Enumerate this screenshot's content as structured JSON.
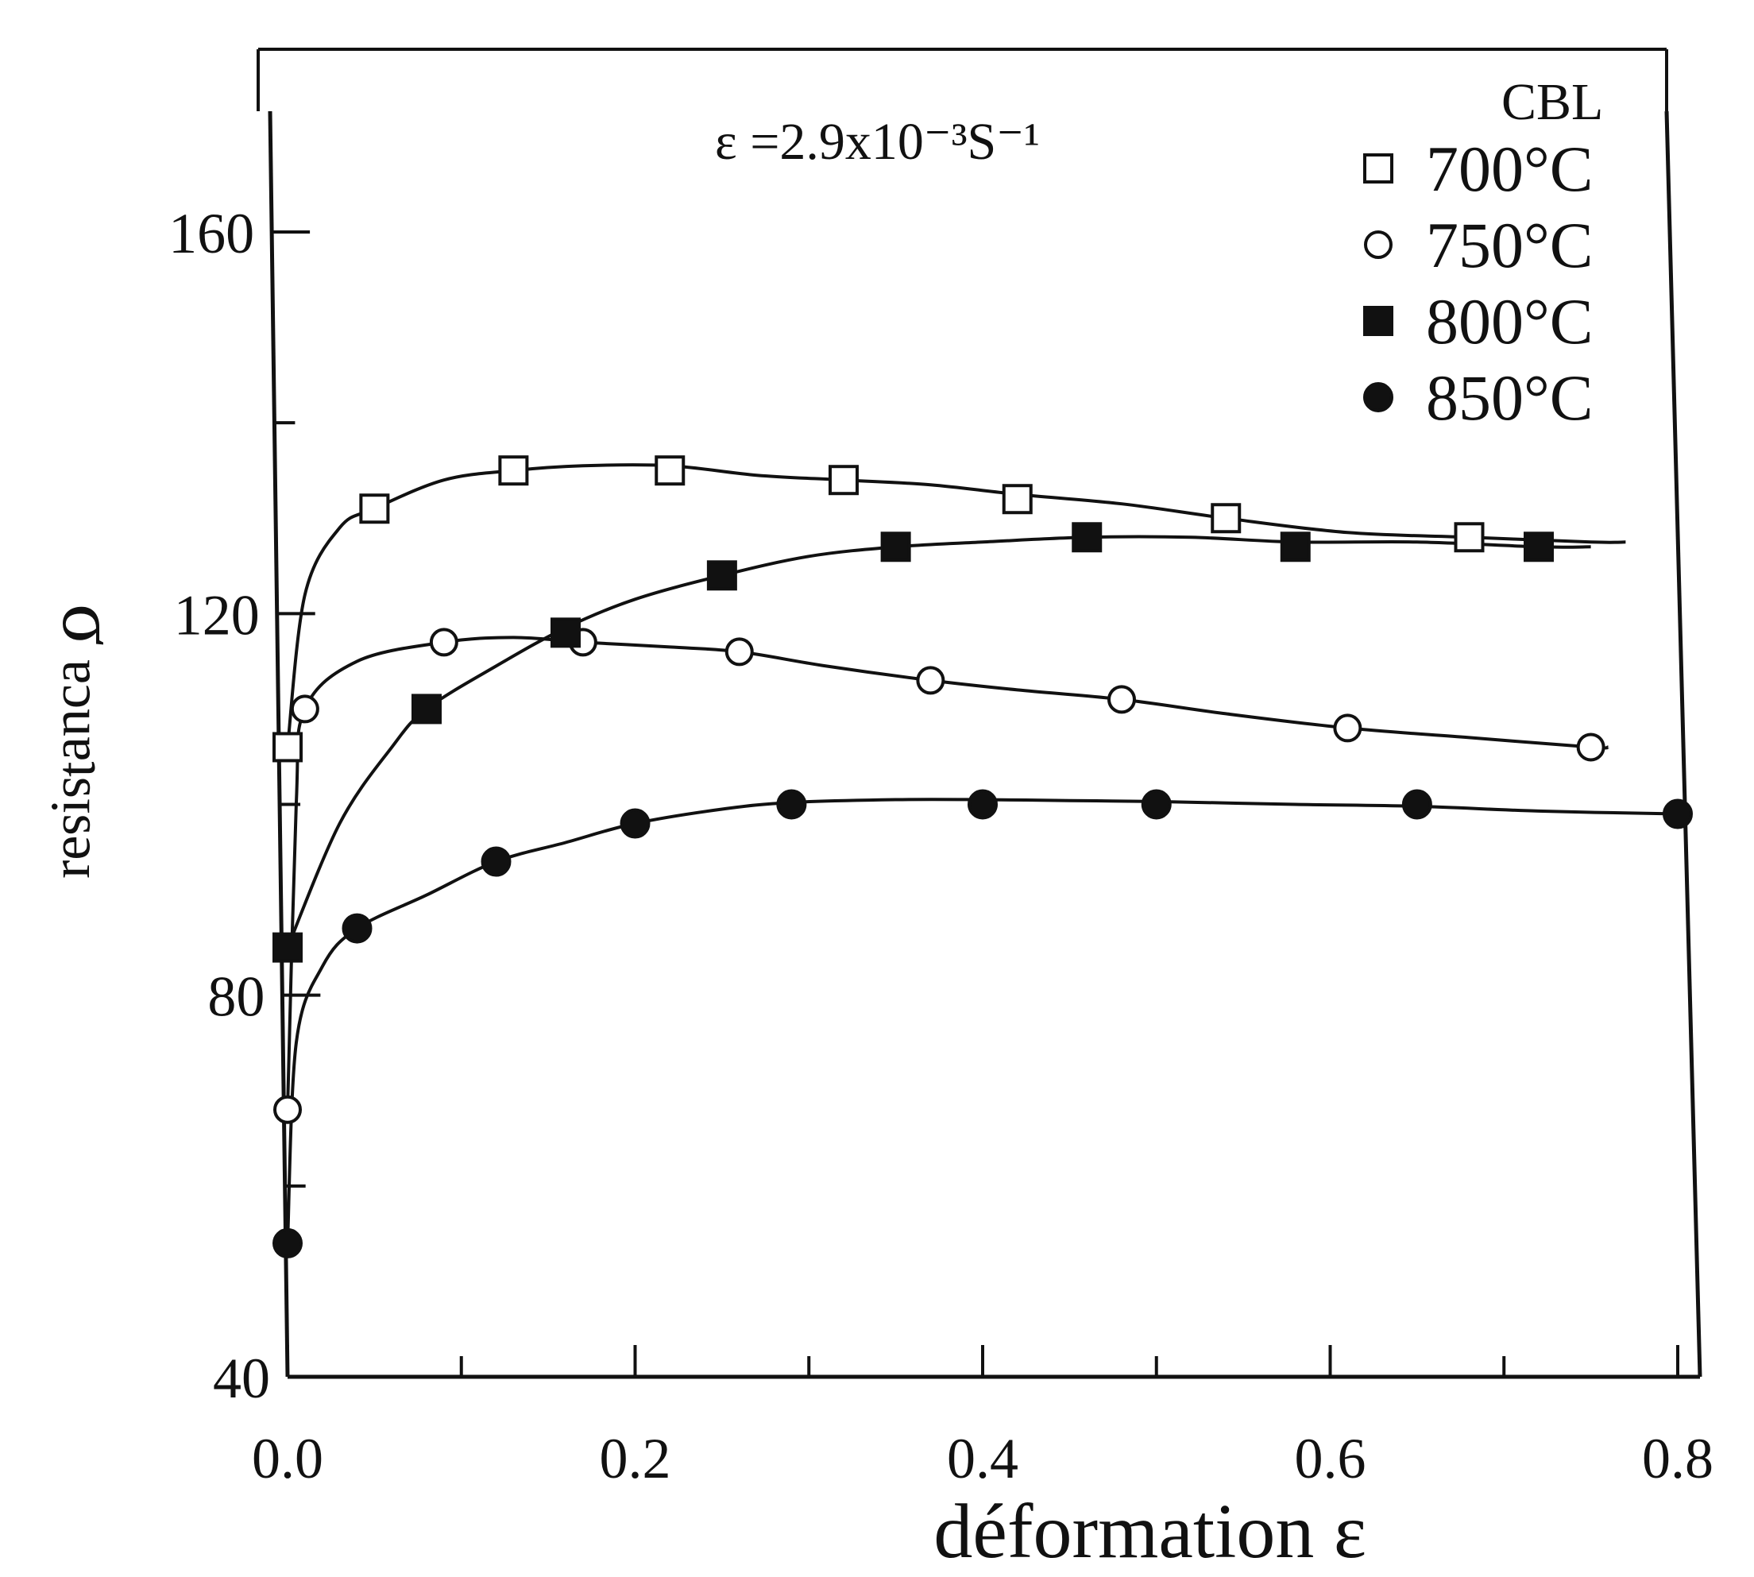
{
  "chart_data": {
    "type": "scatter",
    "title": "ε =2.9x10⁻³S⁻¹",
    "tag": "CBL",
    "xlabel": "déformation ε",
    "ylabel": "σ",
    "ylabel_rest": "ɐɔuɐʇsᴉsǝɹ",
    "xlim": [
      0.0,
      0.8
    ],
    "ylim": [
      40,
      160
    ],
    "x_ticks": [
      "0.0",
      "0.2",
      "0.4",
      "0.6",
      "0.8"
    ],
    "y_ticks": [
      "40",
      "80",
      "120",
      "160"
    ],
    "x_tick_values": [
      0.0,
      0.2,
      0.4,
      0.6,
      0.8
    ],
    "y_tick_values": [
      40,
      80,
      120,
      160
    ],
    "x_minor_ticks": [
      0.1,
      0.3,
      0.5,
      0.7
    ],
    "y_minor_ticks": [
      60,
      100,
      140
    ],
    "grid": false,
    "legend_position": "top-right",
    "series": [
      {
        "name": "700°C",
        "marker": "open-square",
        "points": [
          [
            0.0,
            106
          ],
          [
            0.05,
            131
          ],
          [
            0.13,
            135
          ],
          [
            0.22,
            135
          ],
          [
            0.32,
            134
          ],
          [
            0.42,
            132
          ],
          [
            0.54,
            130
          ],
          [
            0.68,
            128
          ]
        ],
        "curve": [
          [
            0.0,
            106
          ],
          [
            0.01,
            122
          ],
          [
            0.03,
            129
          ],
          [
            0.05,
            131
          ],
          [
            0.09,
            134
          ],
          [
            0.13,
            135
          ],
          [
            0.17,
            135.5
          ],
          [
            0.22,
            135.5
          ],
          [
            0.27,
            134.5
          ],
          [
            0.32,
            134
          ],
          [
            0.37,
            133.5
          ],
          [
            0.42,
            132.5
          ],
          [
            0.48,
            131.5
          ],
          [
            0.54,
            130
          ],
          [
            0.61,
            128.5
          ],
          [
            0.68,
            128
          ],
          [
            0.75,
            127.5
          ],
          [
            0.77,
            127.5
          ]
        ]
      },
      {
        "name": "750°C",
        "marker": "open-circle",
        "points": [
          [
            0.0,
            68
          ],
          [
            0.01,
            110
          ],
          [
            0.09,
            117
          ],
          [
            0.17,
            117
          ],
          [
            0.26,
            116
          ],
          [
            0.37,
            113
          ],
          [
            0.48,
            111
          ],
          [
            0.61,
            108
          ],
          [
            0.75,
            106
          ]
        ],
        "curve": [
          [
            0.0,
            68
          ],
          [
            0.005,
            100
          ],
          [
            0.01,
            110
          ],
          [
            0.04,
            115
          ],
          [
            0.09,
            117
          ],
          [
            0.13,
            117.5
          ],
          [
            0.17,
            117
          ],
          [
            0.22,
            116.5
          ],
          [
            0.26,
            116
          ],
          [
            0.31,
            114.5
          ],
          [
            0.37,
            113
          ],
          [
            0.42,
            112
          ],
          [
            0.48,
            111
          ],
          [
            0.54,
            109.5
          ],
          [
            0.61,
            108
          ],
          [
            0.68,
            107
          ],
          [
            0.75,
            106
          ],
          [
            0.76,
            106
          ]
        ]
      },
      {
        "name": "800°C",
        "marker": "filled-square",
        "points": [
          [
            0.0,
            85
          ],
          [
            0.08,
            110
          ],
          [
            0.16,
            118
          ],
          [
            0.25,
            124
          ],
          [
            0.35,
            127
          ],
          [
            0.46,
            128
          ],
          [
            0.58,
            127
          ],
          [
            0.72,
            127
          ]
        ],
        "curve": [
          [
            0.0,
            85
          ],
          [
            0.03,
            98
          ],
          [
            0.06,
            106
          ],
          [
            0.08,
            110
          ],
          [
            0.12,
            114.5
          ],
          [
            0.16,
            118.5
          ],
          [
            0.2,
            121.5
          ],
          [
            0.25,
            124
          ],
          [
            0.3,
            126
          ],
          [
            0.35,
            127
          ],
          [
            0.4,
            127.5
          ],
          [
            0.46,
            128
          ],
          [
            0.52,
            128
          ],
          [
            0.58,
            127.5
          ],
          [
            0.65,
            127.5
          ],
          [
            0.72,
            127
          ],
          [
            0.75,
            127
          ]
        ]
      },
      {
        "name": "850°C",
        "marker": "filled-circle",
        "points": [
          [
            0.0,
            54
          ],
          [
            0.04,
            87
          ],
          [
            0.12,
            94
          ],
          [
            0.2,
            98
          ],
          [
            0.29,
            100
          ],
          [
            0.4,
            100
          ],
          [
            0.5,
            100
          ],
          [
            0.65,
            100
          ],
          [
            0.8,
            99
          ]
        ],
        "curve": [
          [
            0.0,
            54
          ],
          [
            0.005,
            75
          ],
          [
            0.02,
            83
          ],
          [
            0.04,
            87
          ],
          [
            0.08,
            90.5
          ],
          [
            0.12,
            94
          ],
          [
            0.16,
            96
          ],
          [
            0.2,
            98
          ],
          [
            0.25,
            99.5
          ],
          [
            0.29,
            100.2
          ],
          [
            0.35,
            100.5
          ],
          [
            0.4,
            100.5
          ],
          [
            0.45,
            100.4
          ],
          [
            0.5,
            100.3
          ],
          [
            0.58,
            100
          ],
          [
            0.65,
            99.8
          ],
          [
            0.72,
            99.3
          ],
          [
            0.8,
            99
          ]
        ]
      }
    ]
  }
}
